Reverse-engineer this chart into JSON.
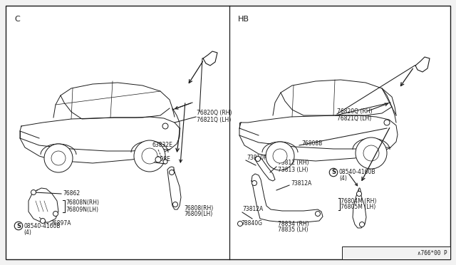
{
  "bg_color": "#f2f2f2",
  "white": "#ffffff",
  "line_color": "#1a1a1a",
  "fig_width": 6.4,
  "fig_height": 3.72,
  "dpi": 100,
  "footer_text": "∧766*00 P",
  "left_label": "C",
  "right_label": "HB"
}
